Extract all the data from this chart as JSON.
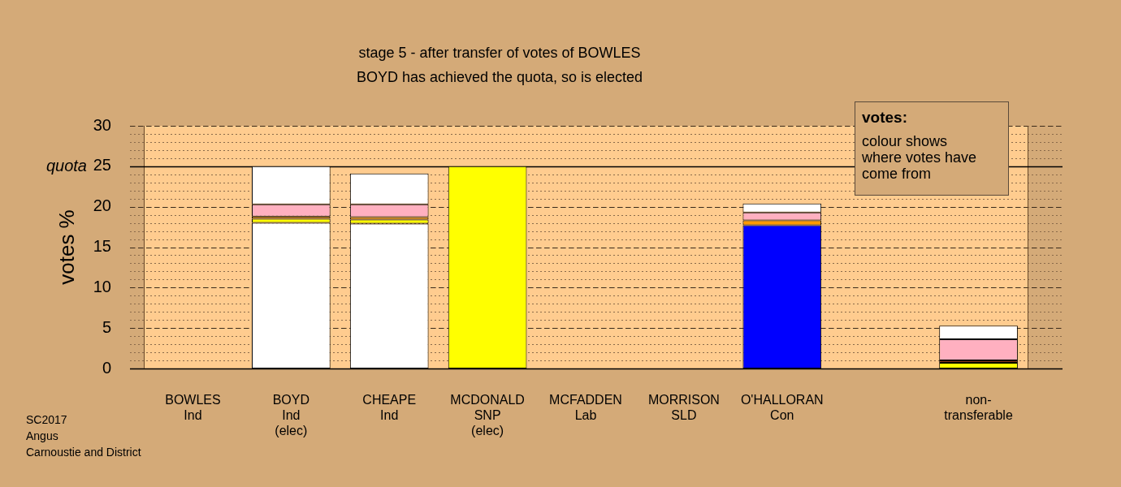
{
  "chart_data": {
    "type": "bar",
    "title": "stage 5 - after transfer of votes of BOWLES",
    "subtitle": "BOYD has achieved the quota, so is elected",
    "ylabel": "votes %",
    "categories": [
      "BOWLES\nInd",
      "BOYD\nInd\n(elec)",
      "CHEAPE\nInd",
      "MCDONALD\nSNP\n(elec)",
      "MCFADDEN\nLab",
      "MORRISON\nSLD",
      "O'HALLORAN\nCon",
      null,
      "non-\ntransferable"
    ],
    "stacked": true,
    "series": [
      {
        "colors": [
          "#ffffff",
          "#ffffff",
          "#ffffff",
          "#ffff00",
          "#ffffff",
          "#ffffff",
          "#0000ff",
          "#ffffff",
          "#ffffff"
        ],
        "values": [
          null,
          18.0,
          17.9,
          25,
          null,
          null,
          17.7,
          null,
          null
        ]
      },
      {
        "color": "#ffff00",
        "values": [
          null,
          0.5,
          0.5,
          null,
          null,
          null,
          null,
          null,
          0.7
        ]
      },
      {
        "color": "#8b3a1a",
        "values": [
          null,
          null,
          null,
          null,
          null,
          null,
          null,
          null,
          0.3
        ]
      },
      {
        "color": "#ff9900",
        "values": [
          null,
          0.3,
          0.3,
          null,
          null,
          null,
          0.6,
          null,
          null
        ]
      },
      {
        "color": "#ffb0c0",
        "values": [
          null,
          1.5,
          1.6,
          null,
          null,
          null,
          1.0,
          null,
          2.6
        ]
      },
      {
        "color": "#ffffff",
        "values": [
          null,
          4.7,
          3.8,
          null,
          null,
          null,
          1.1,
          null,
          1.7
        ]
      }
    ],
    "ylim": [
      0,
      30
    ],
    "yticks": [
      0,
      5,
      10,
      15,
      20,
      25,
      30
    ],
    "grid": "y",
    "ref_lines": [
      {
        "axis": "y",
        "value": 25,
        "label": "quota",
        "line_style": "solid"
      }
    ],
    "annotations": [
      "votes:",
      "colour shows where votes have come from",
      "SC2017",
      "Angus",
      "Carnoustie and District"
    ]
  }
}
